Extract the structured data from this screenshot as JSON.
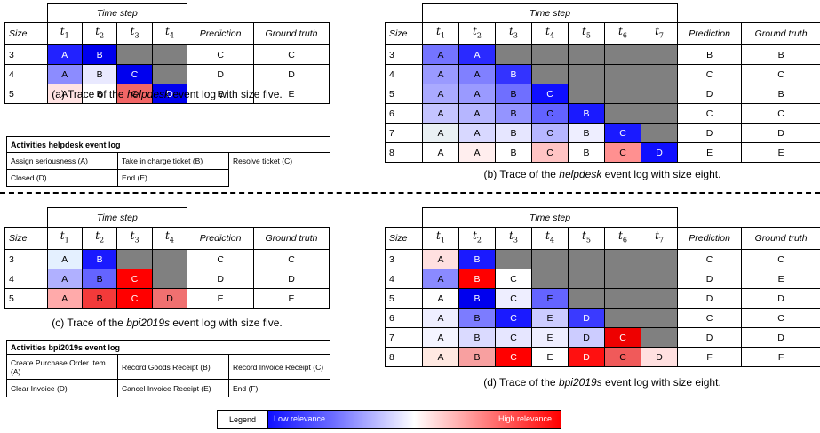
{
  "labels": {
    "time_step": "Time step",
    "size": "Size",
    "prediction": "Prediction",
    "ground_truth": "Ground truth",
    "caption_prefix": "Trace of the",
    "caption_suffix": "event log with size",
    "legend": "Legend",
    "low": "Low relevance",
    "high": "High relevance"
  },
  "steps": [
    "t1",
    "t2",
    "t3",
    "t4",
    "t5",
    "t6",
    "t7"
  ],
  "panels": [
    {
      "id": "a",
      "letter": "(a)",
      "log": "helpdesk",
      "size_word": "five.",
      "rows": [
        {
          "size": "3",
          "cells": [
            {
              "v": "A",
              "c": "#2222ff",
              "t": "#fff"
            },
            {
              "v": "B",
              "c": "#0000ee",
              "t": "#fff"
            },
            {
              "v": "",
              "c": "gray"
            },
            {
              "v": "",
              "c": "gray"
            }
          ],
          "pred": "C",
          "gt": "C"
        },
        {
          "size": "4",
          "cells": [
            {
              "v": "A",
              "c": "#8c8cff"
            },
            {
              "v": "B",
              "c": "#e9e9ff"
            },
            {
              "v": "C",
              "c": "#0000ee",
              "t": "#fff"
            },
            {
              "v": "",
              "c": "gray"
            }
          ],
          "pred": "D",
          "gt": "D"
        },
        {
          "size": "5",
          "cells": [
            {
              "v": "A",
              "c": "#ffe3e3"
            },
            {
              "v": "B",
              "c": "#ffffff"
            },
            {
              "v": "C",
              "c": "#f26666"
            },
            {
              "v": "D",
              "c": "#0000ee",
              "t": "#fff"
            }
          ],
          "pred": "E",
          "gt": "E"
        }
      ]
    },
    {
      "id": "b",
      "letter": "(b)",
      "log": "helpdesk",
      "size_word": "eight.",
      "rows": [
        {
          "size": "3",
          "cells": [
            {
              "v": "A",
              "c": "#7474ff"
            },
            {
              "v": "A",
              "c": "#2a2aff",
              "t": "#fff"
            },
            {
              "v": "",
              "c": "gray"
            },
            {
              "v": "",
              "c": "gray"
            },
            {
              "v": "",
              "c": "gray"
            },
            {
              "v": "",
              "c": "gray"
            },
            {
              "v": "",
              "c": "gray"
            }
          ],
          "pred": "B",
          "gt": "B"
        },
        {
          "size": "4",
          "cells": [
            {
              "v": "A",
              "c": "#9a9aff"
            },
            {
              "v": "A",
              "c": "#8080ff"
            },
            {
              "v": "B",
              "c": "#3333ff",
              "t": "#fff"
            },
            {
              "v": "",
              "c": "gray"
            },
            {
              "v": "",
              "c": "gray"
            },
            {
              "v": "",
              "c": "gray"
            },
            {
              "v": "",
              "c": "gray"
            }
          ],
          "pred": "C",
          "gt": "C"
        },
        {
          "size": "5",
          "cells": [
            {
              "v": "A",
              "c": "#aaaaff"
            },
            {
              "v": "A",
              "c": "#9a9aff"
            },
            {
              "v": "B",
              "c": "#6f6fff"
            },
            {
              "v": "C",
              "c": "#0f0fff",
              "t": "#fff"
            },
            {
              "v": "",
              "c": "gray"
            },
            {
              "v": "",
              "c": "gray"
            },
            {
              "v": "",
              "c": "gray"
            }
          ],
          "pred": "D",
          "gt": "B"
        },
        {
          "size": "6",
          "cells": [
            {
              "v": "A",
              "c": "#c4c4ff"
            },
            {
              "v": "A",
              "c": "#b6b6ff"
            },
            {
              "v": "B",
              "c": "#9494ff"
            },
            {
              "v": "C",
              "c": "#6262ff"
            },
            {
              "v": "B",
              "c": "#1a1aff",
              "t": "#fff"
            },
            {
              "v": "",
              "c": "gray"
            },
            {
              "v": "",
              "c": "gray"
            }
          ],
          "pred": "C",
          "gt": "C"
        },
        {
          "size": "7",
          "cells": [
            {
              "v": "A",
              "c": "#e9f0f3"
            },
            {
              "v": "A",
              "c": "#d8d8ff"
            },
            {
              "v": "B",
              "c": "#e6e6ff"
            },
            {
              "v": "C",
              "c": "#b6b6ff"
            },
            {
              "v": "B",
              "c": "#eeeeff"
            },
            {
              "v": "C",
              "c": "#1a1aff",
              "t": "#fff"
            },
            {
              "v": "",
              "c": "gray"
            }
          ],
          "pred": "D",
          "gt": "D"
        },
        {
          "size": "8",
          "cells": [
            {
              "v": "A",
              "c": "#ffffff"
            },
            {
              "v": "A",
              "c": "#ffeeee"
            },
            {
              "v": "B",
              "c": "#ffffff"
            },
            {
              "v": "C",
              "c": "#ffc4c4"
            },
            {
              "v": "B",
              "c": "#ffffff"
            },
            {
              "v": "C",
              "c": "#ff9090"
            },
            {
              "v": "D",
              "c": "#0f0fff",
              "t": "#fff"
            }
          ],
          "pred": "E",
          "gt": "E"
        }
      ]
    },
    {
      "id": "c",
      "letter": "(c)",
      "log": "bpi2019s",
      "size_word": "five.",
      "rows": [
        {
          "size": "3",
          "cells": [
            {
              "v": "A",
              "c": "#e4f0ff"
            },
            {
              "v": "B",
              "c": "#1a1aff",
              "t": "#fff"
            },
            {
              "v": "",
              "c": "gray"
            },
            {
              "v": "",
              "c": "gray"
            }
          ],
          "pred": "C",
          "gt": "C"
        },
        {
          "size": "4",
          "cells": [
            {
              "v": "A",
              "c": "#b0b0ff"
            },
            {
              "v": "B",
              "c": "#6464ff"
            },
            {
              "v": "C",
              "c": "#ff0000",
              "t": "#fff"
            },
            {
              "v": "",
              "c": "gray"
            }
          ],
          "pred": "D",
          "gt": "D"
        },
        {
          "size": "5",
          "cells": [
            {
              "v": "A",
              "c": "#ffaaaa"
            },
            {
              "v": "B",
              "c": "#f33a3a"
            },
            {
              "v": "C",
              "c": "#ff0000",
              "t": "#fff"
            },
            {
              "v": "D",
              "c": "#f07070"
            }
          ],
          "pred": "E",
          "gt": "E"
        }
      ]
    },
    {
      "id": "d",
      "letter": "(d)",
      "log": "bpi2019s",
      "size_word": "eight.",
      "rows": [
        {
          "size": "3",
          "cells": [
            {
              "v": "A",
              "c": "#ffe0e0"
            },
            {
              "v": "B",
              "c": "#1a1aff",
              "t": "#fff"
            },
            {
              "v": "",
              "c": "gray"
            },
            {
              "v": "",
              "c": "gray"
            },
            {
              "v": "",
              "c": "gray"
            },
            {
              "v": "",
              "c": "gray"
            },
            {
              "v": "",
              "c": "gray"
            }
          ],
          "pred": "C",
          "gt": "C"
        },
        {
          "size": "4",
          "cells": [
            {
              "v": "A",
              "c": "#8a8aff"
            },
            {
              "v": "B",
              "c": "#ff0000",
              "t": "#fff"
            },
            {
              "v": "C",
              "c": "#ffffff"
            },
            {
              "v": "",
              "c": "gray"
            },
            {
              "v": "",
              "c": "gray"
            },
            {
              "v": "",
              "c": "gray"
            },
            {
              "v": "",
              "c": "gray"
            }
          ],
          "pred": "D",
          "gt": "E"
        },
        {
          "size": "5",
          "cells": [
            {
              "v": "A",
              "c": "#ffffff"
            },
            {
              "v": "B",
              "c": "#0000ee",
              "t": "#fff"
            },
            {
              "v": "C",
              "c": "#eeeeff"
            },
            {
              "v": "E",
              "c": "#6464ff"
            },
            {
              "v": "",
              "c": "gray"
            },
            {
              "v": "",
              "c": "gray"
            },
            {
              "v": "",
              "c": "gray"
            }
          ],
          "pred": "D",
          "gt": "D"
        },
        {
          "size": "6",
          "cells": [
            {
              "v": "A",
              "c": "#eeeeff"
            },
            {
              "v": "B",
              "c": "#7c7cff"
            },
            {
              "v": "C",
              "c": "#1a1aff",
              "t": "#fff"
            },
            {
              "v": "E",
              "c": "#ccccff"
            },
            {
              "v": "D",
              "c": "#3a3aff",
              "t": "#fff"
            },
            {
              "v": "",
              "c": "gray"
            },
            {
              "v": "",
              "c": "gray"
            }
          ],
          "pred": "C",
          "gt": "C"
        },
        {
          "size": "7",
          "cells": [
            {
              "v": "A",
              "c": "#f4f4ff"
            },
            {
              "v": "B",
              "c": "#dadaff"
            },
            {
              "v": "C",
              "c": "#e6e6ff"
            },
            {
              "v": "E",
              "c": "#eeeeff"
            },
            {
              "v": "D",
              "c": "#ccccff"
            },
            {
              "v": "C",
              "c": "#ee0000",
              "t": "#fff"
            },
            {
              "v": "",
              "c": "gray"
            }
          ],
          "pred": "D",
          "gt": "D"
        },
        {
          "size": "8",
          "cells": [
            {
              "v": "A",
              "c": "#ffe9e2"
            },
            {
              "v": "B",
              "c": "#f8a0a0"
            },
            {
              "v": "C",
              "c": "#ff0000",
              "t": "#fff"
            },
            {
              "v": "E",
              "c": "#ffffff"
            },
            {
              "v": "D",
              "c": "#ff1010",
              "t": "#fff"
            },
            {
              "v": "C",
              "c": "#f05a5a"
            },
            {
              "v": "D",
              "c": "#ffe0e0"
            }
          ],
          "pred": "F",
          "gt": "F"
        }
      ]
    }
  ],
  "activities": [
    {
      "title": "Activities helpdesk event log",
      "items": [
        "Assign seriousness (A)",
        "Take in charge ticket (B)",
        "Resolve ticket (C)",
        "Closed (D)",
        "End (E)"
      ]
    },
    {
      "title": "Activities bpi2019s event log",
      "items": [
        "Create Purchase Order Item (A)",
        "Record Goods Receipt (B)",
        "Record Invoice Receipt (C)",
        "Clear Invoice (D)",
        "Cancel Invoice Receipt (E)",
        "End (F)"
      ]
    }
  ]
}
